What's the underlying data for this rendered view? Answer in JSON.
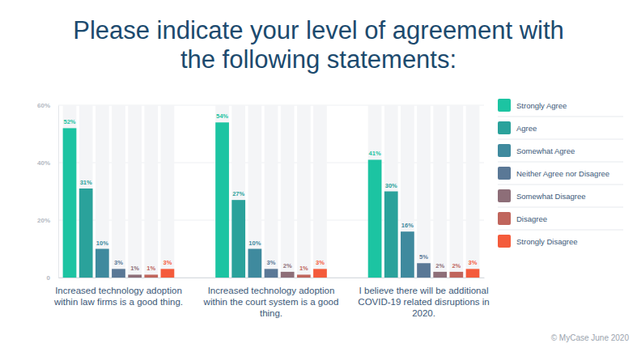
{
  "chart_data": {
    "type": "bar",
    "title": [
      "Please indicate your level of agreement with",
      "the following statements:"
    ],
    "categories": [
      "Increased technology adoption within law firms is a good thing.",
      "Increased technology adoption within the court system is a good thing.",
      "I believe there will be additional COVID-19 related disruptions in 2020."
    ],
    "series": [
      {
        "name": "Strongly Agree",
        "color": "#1cc4a2",
        "values": [
          52,
          54,
          41
        ],
        "value_labels": [
          "52%",
          "54%",
          "41%"
        ]
      },
      {
        "name": "Agree",
        "color": "#2aa29b",
        "values": [
          31,
          27,
          30
        ],
        "value_labels": [
          "31%",
          "27%",
          "30%"
        ]
      },
      {
        "name": "Somewhat Agree",
        "color": "#3f8a9e",
        "values": [
          10,
          10,
          16
        ],
        "value_labels": [
          "10%",
          "10%",
          "16%"
        ]
      },
      {
        "name": "Neither Agree nor Disagree",
        "color": "#5a7896",
        "values": [
          3,
          3,
          5
        ],
        "value_labels": [
          "3%",
          "3%",
          "5%"
        ]
      },
      {
        "name": "Somewhat Disagree",
        "color": "#8d6e78",
        "values": [
          1,
          2,
          2
        ],
        "value_labels": [
          "1%",
          "2%",
          "2%"
        ]
      },
      {
        "name": "Disagree",
        "color": "#c0655c",
        "values": [
          1,
          1,
          2
        ],
        "value_labels": [
          "1%",
          "1%",
          "2%"
        ]
      },
      {
        "name": "Strongly Disagree",
        "color": "#f45b3b",
        "values": [
          3,
          3,
          3
        ],
        "value_labels": [
          "3%",
          "3%",
          "3%"
        ]
      }
    ],
    "ylim": [
      0,
      60
    ],
    "yticks": [
      0,
      {
        "value": 20,
        "label": "20%"
      },
      {
        "value": 40,
        "label": "40%"
      },
      {
        "value": 60,
        "label": "60%"
      }
    ],
    "grid": true,
    "data_labels": true,
    "legend": "right",
    "annotations": [
      "© MyCase June 2020"
    ]
  }
}
